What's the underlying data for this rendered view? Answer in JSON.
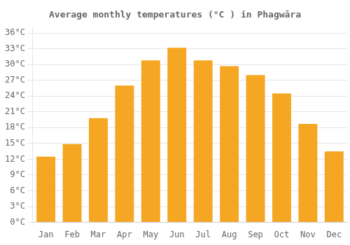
{
  "chart_data": {
    "type": "bar",
    "title": "Average monthly temperatures (°C ) in Phagwāra",
    "categories": [
      "Jan",
      "Feb",
      "Mar",
      "Apr",
      "May",
      "Jun",
      "Jul",
      "Aug",
      "Sep",
      "Oct",
      "Nov",
      "Dec"
    ],
    "values": [
      12.5,
      14.9,
      19.8,
      26.0,
      30.8,
      33.2,
      30.8,
      29.7,
      28.0,
      24.5,
      18.7,
      13.5
    ],
    "color": "#F5A623",
    "ylim": [
      0,
      37
    ],
    "yticks": [
      {
        "value": 0,
        "label": "0°C"
      },
      {
        "value": 3,
        "label": "3°C"
      },
      {
        "value": 6,
        "label": "6°C"
      },
      {
        "value": 9,
        "label": "9°C"
      },
      {
        "value": 12,
        "label": "12°C"
      },
      {
        "value": 15,
        "label": "15°C"
      },
      {
        "value": 18,
        "label": "18°C"
      },
      {
        "value": 21,
        "label": "21°C"
      },
      {
        "value": 24,
        "label": "24°C"
      },
      {
        "value": 27,
        "label": "27°C"
      },
      {
        "value": 30,
        "label": "30°C"
      },
      {
        "value": 33,
        "label": "33°C"
      },
      {
        "value": 36,
        "label": "36°C"
      }
    ],
    "grid": true
  }
}
